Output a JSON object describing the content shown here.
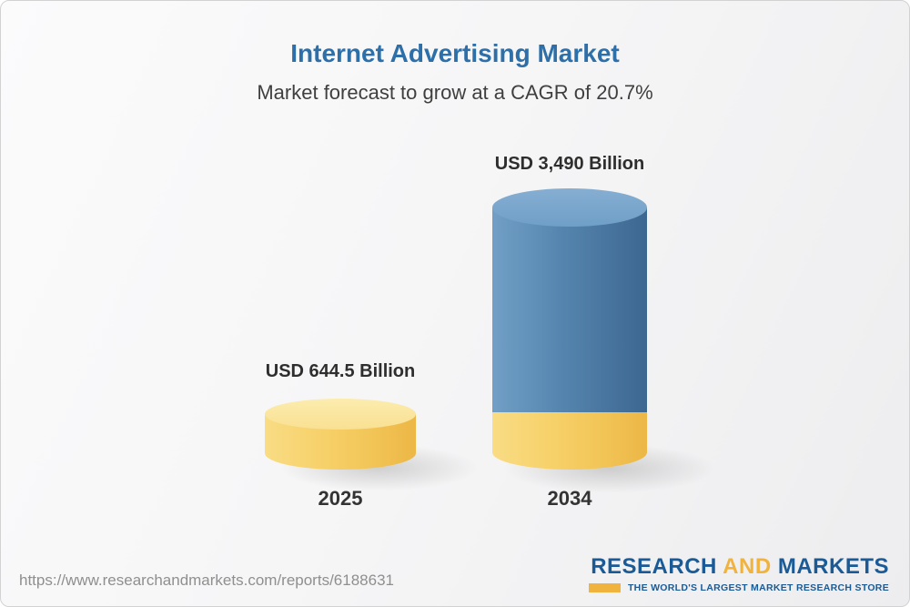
{
  "header": {
    "title": "Internet Advertising Market",
    "subtitle": "Market forecast to grow at a CAGR of 20.7%"
  },
  "chart_data": {
    "type": "bar",
    "title": "Internet Advertising Market",
    "subtitle": "Market forecast to grow at a CAGR of 20.7%",
    "categories": [
      "2025",
      "2034"
    ],
    "values": [
      644.5,
      3490
    ],
    "unit": "USD Billion",
    "value_labels": [
      "USD 644.5 Billion",
      "USD 3,490 Billion"
    ],
    "cagr_percent": 20.7,
    "bar_colors": [
      "#f6cf66",
      "#4f7ca6"
    ],
    "legend": false
  },
  "bars": [
    {
      "label": "USD 644.5 Billion",
      "year": "2025",
      "color": "#f6cf66"
    },
    {
      "label": "USD 3,490 Billion",
      "year": "2034",
      "color": "#4f7ca6"
    }
  ],
  "colors": {
    "title_blue": "#2d6fa9",
    "logo_blue": "#1a5b97",
    "gold": "#f0b33d"
  },
  "footer": {
    "url": "https://www.researchandmarkets.com/reports/6188631",
    "logo": {
      "research": "RESEARCH",
      "and": "AND",
      "markets": "MARKETS",
      "tagline": "THE WORLD'S LARGEST MARKET RESEARCH STORE"
    }
  }
}
